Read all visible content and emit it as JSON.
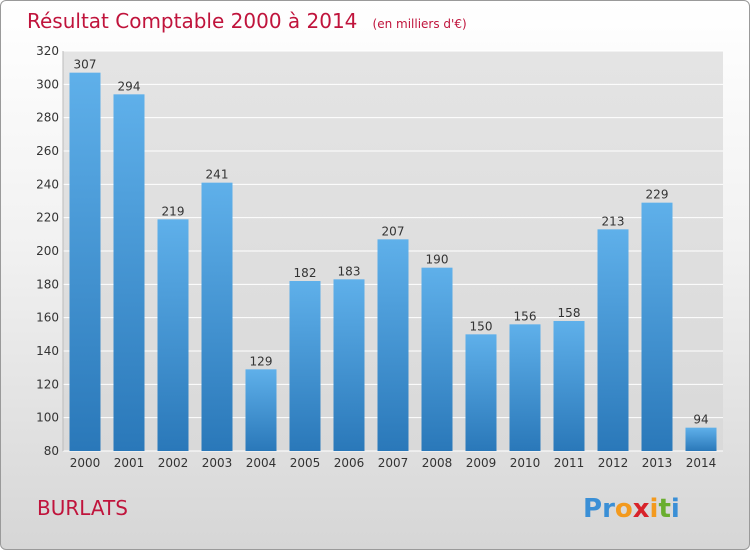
{
  "chart_data": {
    "type": "bar",
    "title": "Résultat Comptable 2000 à 2014",
    "subtitle": "(en milliers d'€)",
    "categories": [
      "2000",
      "2001",
      "2002",
      "2003",
      "2004",
      "2005",
      "2006",
      "2007",
      "2008",
      "2009",
      "2010",
      "2011",
      "2012",
      "2013",
      "2014"
    ],
    "values": [
      307,
      294,
      219,
      241,
      129,
      182,
      183,
      207,
      190,
      150,
      156,
      158,
      213,
      229,
      94
    ],
    "ylim": [
      80,
      320
    ],
    "yticks": [
      80,
      100,
      120,
      140,
      160,
      180,
      200,
      220,
      240,
      260,
      280,
      300,
      320
    ],
    "grid": true,
    "bar_color_top": "#5fb0ea",
    "bar_color_bottom": "#2a78b9"
  },
  "footer": {
    "commune": "BURLATS",
    "logo_text": "Proxiti",
    "logo_letters": [
      "P",
      "r",
      "o",
      "x",
      "i",
      "t",
      "i"
    ],
    "logo_colors": [
      "#3a8fd6",
      "#3a8fd6",
      "#f39a1e",
      "#d8232a",
      "#f39a1e",
      "#6aae2f",
      "#3a8fd6"
    ]
  },
  "colors": {
    "title": "#c0143c"
  }
}
